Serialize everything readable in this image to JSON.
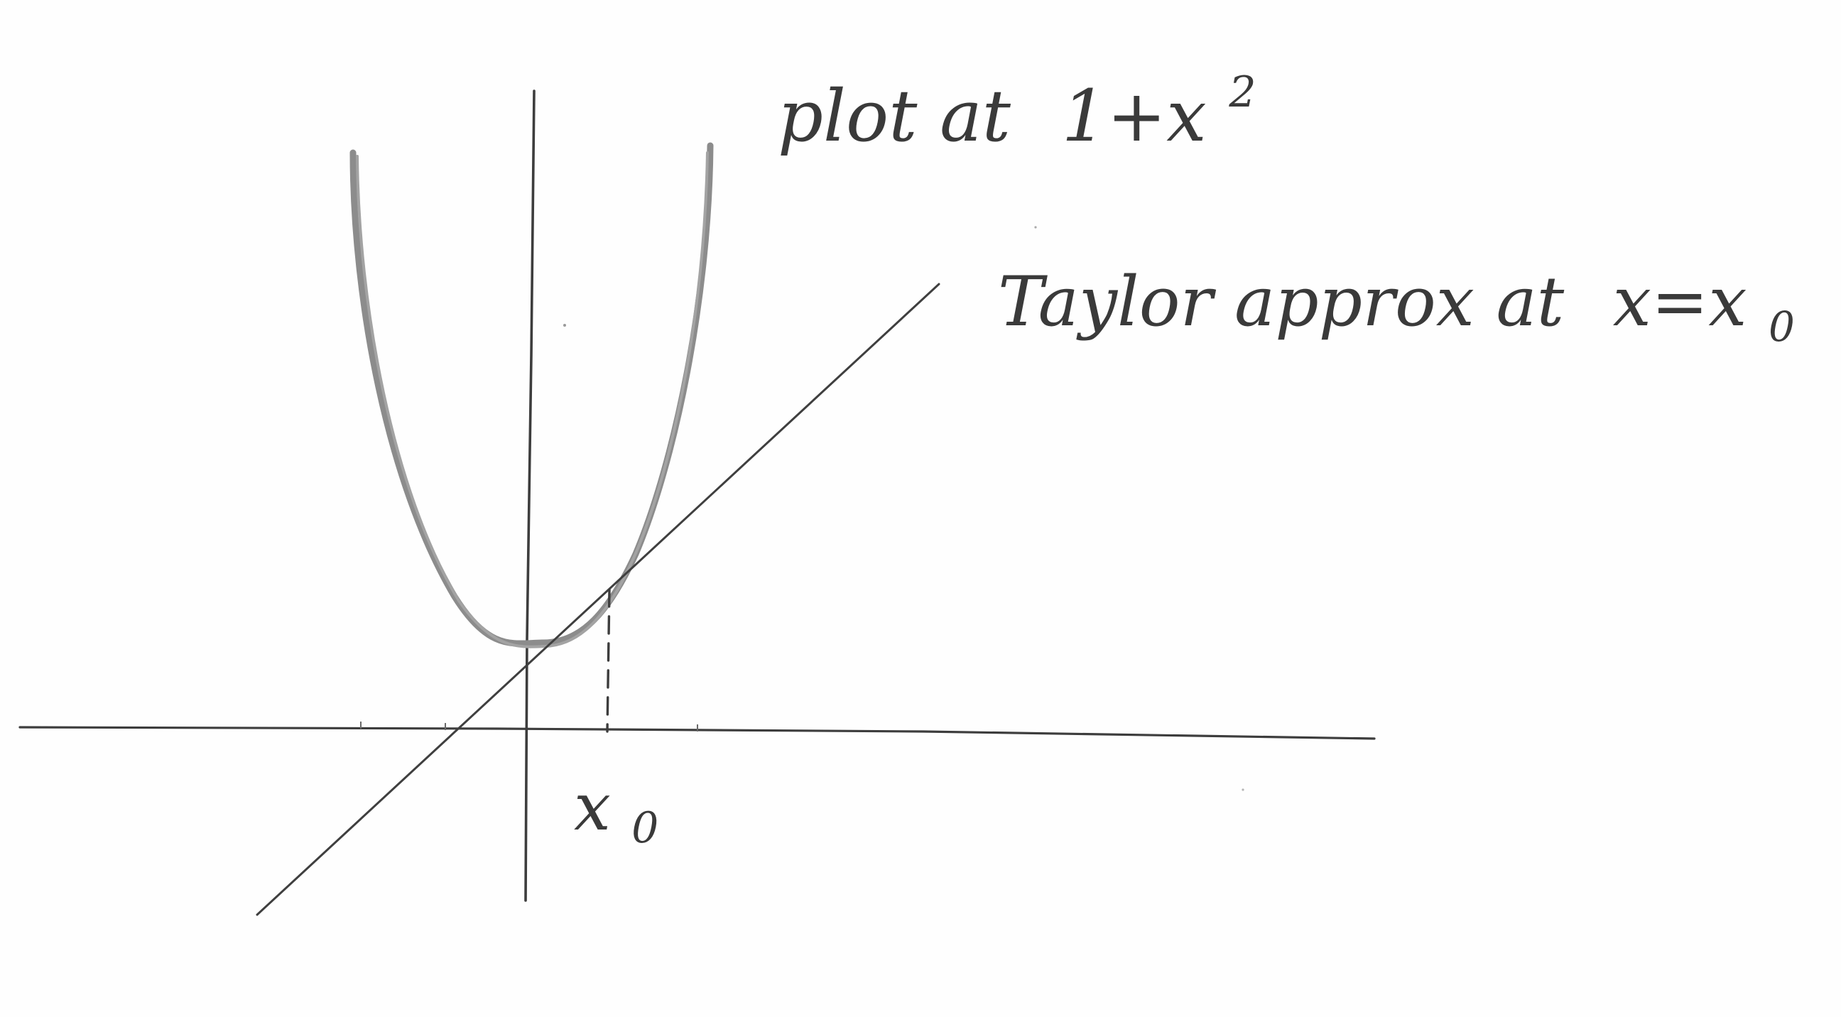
{
  "labels": {
    "curve_label_text": "plot at",
    "curve_label_expr_base": "1+x",
    "curve_label_expr_sup": "2",
    "tangent_label_text": "Taylor approx at",
    "tangent_label_expr_base": "x=x",
    "tangent_label_expr_sub": "0",
    "x0_tick_base": "x",
    "x0_tick_sub": "0"
  },
  "colors": {
    "axis": "#3d3d3d",
    "curve": "#8c8c8c",
    "tangent": "#3f3f3f",
    "text": "#3a3a3a"
  }
}
